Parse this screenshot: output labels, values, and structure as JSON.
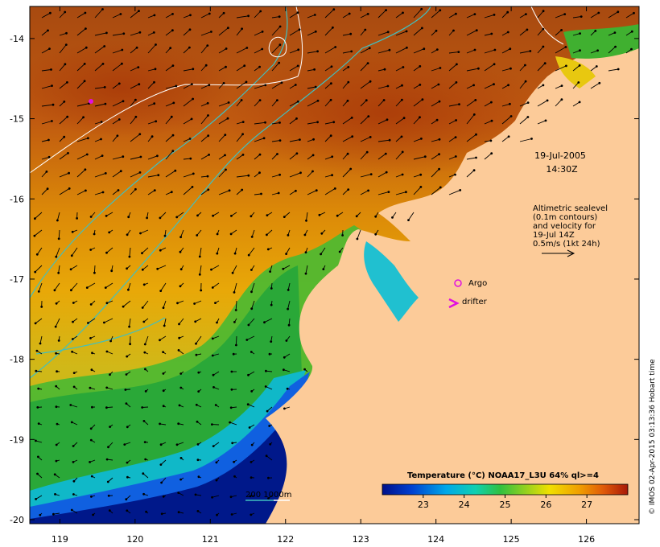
{
  "map": {
    "extent": {
      "lon_min": 118.6,
      "lon_max": 126.7,
      "lat_min": -20.05,
      "lat_max": -13.6
    },
    "x_ticks": [
      119,
      120,
      121,
      122,
      123,
      124,
      125,
      126
    ],
    "y_ticks": [
      -14,
      -15,
      -16,
      -17,
      -18,
      -19,
      -20
    ],
    "x_tick_labels": [
      "119",
      "120",
      "121",
      "122",
      "123",
      "124",
      "125",
      "126"
    ],
    "y_tick_labels": [
      "-14",
      "-15",
      "-16",
      "-17",
      "-18",
      "-19",
      "-20"
    ]
  },
  "annotation": {
    "date": "19-Jul-2005",
    "time": "14:30Z",
    "legend_lines": [
      "Altimetric sealevel",
      "(0.1m contours)",
      "and velocity for",
      "19-Jul 14Z",
      "0.5m/s (1kt 24h)"
    ]
  },
  "markers": {
    "argo_label": "Argo",
    "drifter_label": "drifter",
    "argo_color": "#e010e0",
    "drifter_color": "#e010e0"
  },
  "depth_scale": {
    "label": "200  1000m",
    "color": "#40c0c0"
  },
  "colorbar": {
    "title": "Temperature (°C) NOAA17_L3U 64% ql>=4",
    "tick_values": [
      23,
      24,
      25,
      26,
      27
    ],
    "tick_labels": [
      "23",
      "24",
      "25",
      "26",
      "27"
    ],
    "range": [
      22,
      28
    ]
  },
  "credit": "© IMOS 02-Apr-2015 03:13:36 Hobart time",
  "colors": {
    "land": "#fccb99",
    "warm": "#c05010",
    "cool": "#00208a"
  }
}
